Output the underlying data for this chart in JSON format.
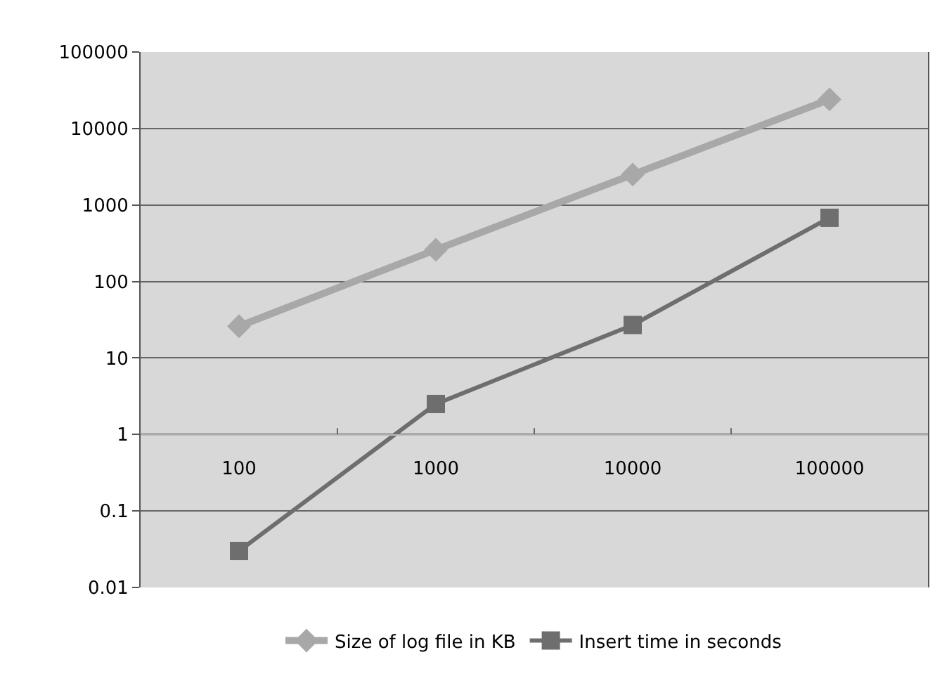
{
  "chart_data": {
    "type": "line",
    "categories": [
      "100",
      "1000",
      "10000",
      "100000"
    ],
    "series": [
      {
        "name": "Size of log file in KB",
        "color": "#a8a8a8",
        "marker": "diamond",
        "values": [
          26,
          260,
          2500,
          24000
        ]
      },
      {
        "name": "Insert time in seconds",
        "color": "#6e6e6e",
        "marker": "square",
        "values": [
          0.03,
          2.5,
          27,
          680
        ]
      }
    ],
    "log": "y",
    "ylim": [
      0.01,
      100000
    ],
    "yticks": [
      0.01,
      0.1,
      1,
      10,
      100,
      1000,
      10000,
      100000
    ],
    "grid": "y",
    "legend": "bottom",
    "line_style": "solid"
  }
}
